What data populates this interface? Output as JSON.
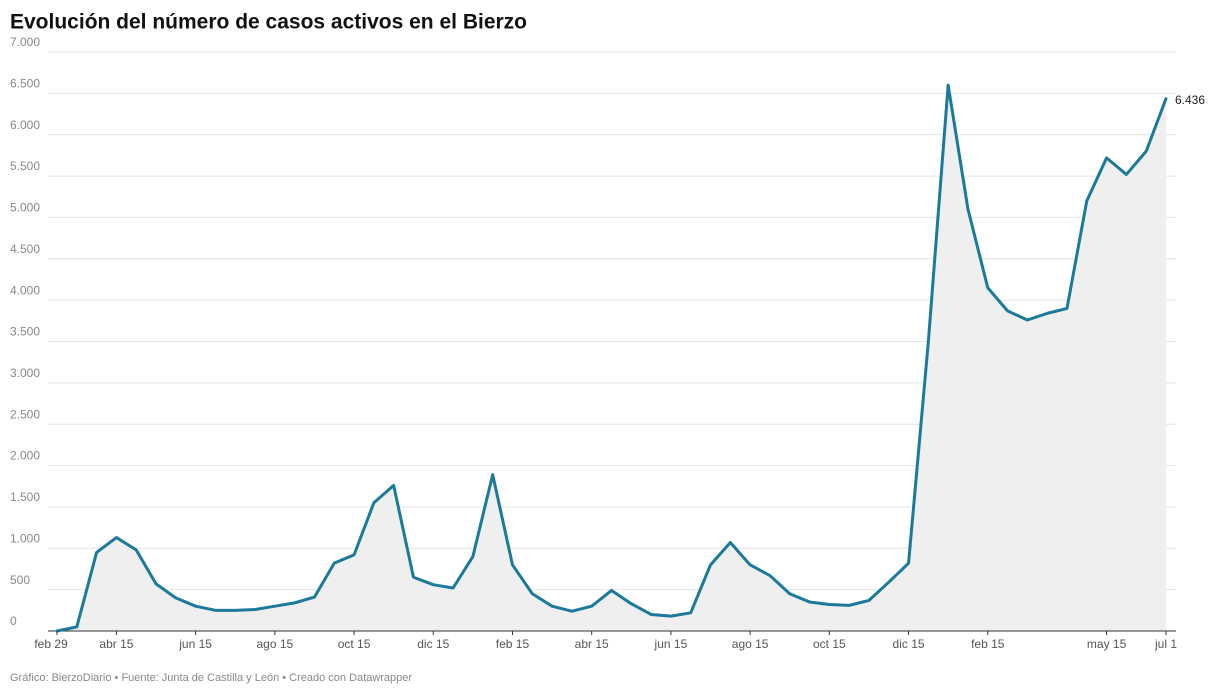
{
  "chart_data": {
    "type": "line",
    "title": "Evolución del número de casos activos en el Bierzo",
    "source": "Gráfico: BierzoDiario • Fuente: Junta de Castilla y León • Creado con Datawrapper",
    "categories": [
      "feb 29",
      null,
      null,
      "abr 15",
      null,
      null,
      null,
      "jun 15",
      null,
      null,
      null,
      "ago 15",
      null,
      null,
      null,
      "oct 15",
      null,
      null,
      null,
      "dic 15",
      null,
      null,
      null,
      "feb 15",
      null,
      null,
      null,
      "abr 15",
      null,
      null,
      null,
      "jun 15",
      null,
      null,
      null,
      "ago 15",
      null,
      null,
      null,
      "oct 15",
      null,
      null,
      null,
      "dic 15",
      null,
      null,
      null,
      "feb 15",
      null,
      null,
      null,
      null,
      null,
      "may 15",
      null,
      null,
      "jul 1"
    ],
    "values": [
      0,
      50,
      950,
      1130,
      980,
      570,
      400,
      300,
      250,
      250,
      260,
      300,
      340,
      410,
      820,
      920,
      1550,
      1760,
      650,
      560,
      520,
      900,
      1890,
      800,
      450,
      300,
      240,
      300,
      490,
      330,
      200,
      180,
      220,
      800,
      1070,
      800,
      670,
      450,
      350,
      320,
      310,
      370,
      590,
      820,
      3500,
      6600,
      5100,
      4150,
      3870,
      3760,
      3840,
      3900,
      5200,
      5720,
      5520,
      5800,
      6436
    ],
    "value_labels": [
      null,
      null,
      null,
      null,
      null,
      null,
      null,
      null,
      null,
      null,
      null,
      null,
      null,
      null,
      null,
      null,
      null,
      null,
      null,
      null,
      null,
      null,
      null,
      null,
      null,
      null,
      null,
      null,
      null,
      null,
      null,
      null,
      null,
      null,
      null,
      null,
      null,
      null,
      null,
      null,
      null,
      null,
      null,
      null,
      null,
      null,
      null,
      null,
      null,
      null,
      null,
      null,
      null,
      null,
      null,
      null,
      "6.436"
    ],
    "color": "#1b7a9a",
    "area_color": "#efefef",
    "ylim": [
      0,
      7000
    ],
    "yticks": [
      0,
      500,
      {
        "value": 1000,
        "label": "1.000"
      },
      {
        "value": 1500,
        "label": "1.500"
      },
      {
        "value": 2000,
        "label": "2.000"
      },
      {
        "value": 2500,
        "label": "2.500"
      },
      {
        "value": 3000,
        "label": "3.000"
      },
      {
        "value": 3500,
        "label": "3.500"
      },
      {
        "value": 4000,
        "label": "4.000"
      },
      {
        "value": 4500,
        "label": "4.500"
      },
      {
        "value": 5000,
        "label": "5.000"
      },
      {
        "value": 5500,
        "label": "5.500"
      },
      {
        "value": 6000,
        "label": "6.000"
      },
      {
        "value": 6500,
        "label": "6.500"
      },
      {
        "value": 7000,
        "label": "7.000"
      }
    ],
    "grid": true
  }
}
